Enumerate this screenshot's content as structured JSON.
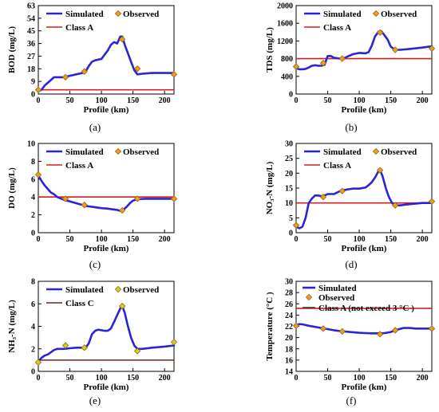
{
  "chart_data": [
    {
      "type": "line",
      "caption": "(a)",
      "xlabel": "Profile (km)",
      "ylabel": "BOD (mg/L)",
      "xlim": [
        0,
        215
      ],
      "xticks": [
        0,
        50,
        100,
        150,
        200
      ],
      "ylim": [
        0,
        63
      ],
      "yticks": [
        0,
        9,
        18,
        27,
        36,
        45,
        54,
        63
      ],
      "legend": {
        "simulated": "Simulated",
        "observed": "Observed",
        "standard": "Class A"
      },
      "standard": 3,
      "simulated": {
        "x": [
          0,
          5,
          10,
          15,
          20,
          25,
          30,
          40,
          50,
          60,
          70,
          75,
          80,
          85,
          90,
          95,
          100,
          105,
          110,
          115,
          120,
          125,
          130,
          133,
          137,
          142,
          147,
          152,
          157,
          165,
          180,
          200,
          215
        ],
        "y": [
          2,
          3,
          6,
          8,
          10,
          12,
          12,
          12,
          13,
          14,
          15,
          16,
          20,
          23,
          24,
          24.5,
          25,
          28,
          31,
          35,
          37,
          36,
          41,
          41,
          35,
          29,
          23,
          17,
          14,
          14.5,
          15,
          15,
          15
        ]
      },
      "observed": {
        "x": [
          0,
          43,
          73,
          133,
          157,
          215
        ],
        "y": [
          3,
          12,
          16,
          39,
          18,
          14
        ]
      }
    },
    {
      "type": "line",
      "caption": "(b)",
      "xlabel": "Profile (km)",
      "ylabel": "TDS (mg/L)",
      "xlim": [
        0,
        215
      ],
      "xticks": [
        0,
        50,
        100,
        150,
        200
      ],
      "ylim": [
        0,
        2000
      ],
      "yticks": [
        0,
        400,
        800,
        1200,
        1600,
        2000
      ],
      "legend": {
        "simulated": "Simulated",
        "observed": "Observed",
        "standard": "Class A"
      },
      "standard": 800,
      "simulated": {
        "x": [
          0,
          5,
          10,
          15,
          20,
          25,
          30,
          35,
          40,
          45,
          50,
          55,
          60,
          65,
          70,
          75,
          80,
          90,
          100,
          110,
          115,
          120,
          125,
          130,
          135,
          140,
          145,
          150,
          157,
          165,
          180,
          200,
          215
        ],
        "y": [
          580,
          560,
          560,
          570,
          600,
          640,
          650,
          640,
          640,
          660,
          860,
          860,
          820,
          810,
          800,
          800,
          840,
          900,
          930,
          920,
          950,
          1100,
          1300,
          1400,
          1420,
          1330,
          1230,
          1070,
          1000,
          1000,
          1020,
          1050,
          1080
        ]
      },
      "observed": {
        "x": [
          0,
          43,
          73,
          133,
          157,
          215
        ],
        "y": [
          620,
          700,
          800,
          1390,
          1000,
          1030
        ]
      }
    },
    {
      "type": "line",
      "caption": "(c)",
      "xlabel": "Profile (km)",
      "ylabel": "DO (mg/L)",
      "xlim": [
        0,
        215
      ],
      "xticks": [
        0,
        50,
        100,
        150,
        200
      ],
      "ylim": [
        0,
        10
      ],
      "yticks": [
        0,
        2,
        4,
        6,
        8,
        10
      ],
      "legend": {
        "simulated": "Simulated",
        "observed": "Observed",
        "standard": "Class A"
      },
      "standard": 4,
      "simulated": {
        "x": [
          0,
          5,
          10,
          15,
          20,
          25,
          30,
          40,
          50,
          60,
          70,
          75,
          80,
          90,
          100,
          110,
          120,
          125,
          130,
          133,
          140,
          145,
          150,
          157,
          170,
          190,
          215
        ],
        "y": [
          6.4,
          5.8,
          5.3,
          4.9,
          4.5,
          4.3,
          4.0,
          3.7,
          3.5,
          3.3,
          3.1,
          3.0,
          2.95,
          2.85,
          2.75,
          2.7,
          2.6,
          2.55,
          2.45,
          2.45,
          2.9,
          3.3,
          3.6,
          3.75,
          3.8,
          3.8,
          3.8
        ]
      },
      "observed": {
        "x": [
          0,
          43,
          73,
          133,
          157,
          215
        ],
        "y": [
          6.5,
          3.8,
          3.1,
          2.5,
          3.8,
          3.8
        ]
      }
    },
    {
      "type": "line",
      "caption": "(d)",
      "xlabel": "Profile (km)",
      "ylabel": "NO₃-N (mg/L)",
      "xlim": [
        0,
        215
      ],
      "xticks": [
        0,
        50,
        100,
        150,
        200
      ],
      "ylim": [
        0,
        30
      ],
      "yticks": [
        0,
        5,
        10,
        15,
        20,
        25,
        30
      ],
      "legend": {
        "simulated": "Simulated",
        "observed": "Observed",
        "standard": "Class A"
      },
      "standard": 10,
      "simulated": {
        "x": [
          0,
          5,
          10,
          15,
          20,
          25,
          30,
          35,
          40,
          45,
          50,
          60,
          70,
          80,
          90,
          100,
          105,
          110,
          115,
          120,
          125,
          130,
          133,
          137,
          142,
          147,
          152,
          157,
          165,
          180,
          200,
          215
        ],
        "y": [
          2,
          1.5,
          2,
          5,
          10,
          11.5,
          12.5,
          12.5,
          12.3,
          12.5,
          13,
          13,
          14,
          14.5,
          14.8,
          14.8,
          15,
          15.2,
          16,
          17,
          18.5,
          20.5,
          21,
          19,
          15,
          12,
          10,
          9.2,
          9.2,
          9.6,
          10,
          10
        ]
      },
      "observed": {
        "x": [
          0,
          43,
          73,
          133,
          157,
          215
        ],
        "y": [
          2.5,
          12,
          14,
          21,
          9.2,
          10.5
        ]
      }
    },
    {
      "type": "line",
      "caption": "(e)",
      "xlabel": "Profile (km)",
      "ylabel": "NH₃-N (mg/L)",
      "xlim": [
        0,
        215
      ],
      "xticks": [
        0,
        50,
        100,
        150,
        200
      ],
      "ylim": [
        0,
        8
      ],
      "yticks": [
        0,
        2,
        4,
        6,
        8
      ],
      "legend": {
        "simulated": "Simulated",
        "observed": "Observed",
        "standard": "Class C"
      },
      "standard": 1,
      "simulated": {
        "x": [
          0,
          5,
          10,
          15,
          20,
          25,
          30,
          40,
          50,
          60,
          70,
          75,
          80,
          85,
          90,
          95,
          100,
          105,
          110,
          115,
          120,
          125,
          130,
          133,
          137,
          142,
          147,
          152,
          157,
          165,
          180,
          200,
          215
        ],
        "y": [
          0.9,
          1.2,
          1.4,
          1.5,
          1.7,
          1.9,
          2.0,
          2.0,
          2.05,
          2.1,
          2.1,
          2.1,
          2.5,
          3.3,
          3.6,
          3.7,
          3.65,
          3.6,
          3.6,
          3.8,
          4.4,
          5.0,
          5.6,
          5.8,
          5.2,
          4.0,
          3.0,
          2.3,
          2.0,
          2.0,
          2.1,
          2.2,
          2.3
        ]
      },
      "observed": {
        "x": [
          0,
          43,
          73,
          133,
          157,
          215
        ],
        "y": [
          0.8,
          2.3,
          2.1,
          5.8,
          1.8,
          2.6
        ]
      }
    },
    {
      "type": "line",
      "caption": "(f)",
      "xlabel": "Profile (km)",
      "ylabel": "Temperature (°C )",
      "xlim": [
        0,
        215
      ],
      "xticks": [
        0,
        50,
        100,
        150,
        200
      ],
      "ylim": [
        14,
        30
      ],
      "yticks": [
        14,
        16,
        18,
        20,
        22,
        24,
        26,
        28,
        30
      ],
      "legend": {
        "simulated": "Simulated",
        "observed": "Observed",
        "standard": "Class A (not exceed 3 °C )"
      },
      "standard": 25.2,
      "simulated": {
        "x": [
          0,
          5,
          10,
          20,
          30,
          40,
          50,
          60,
          70,
          80,
          90,
          100,
          110,
          120,
          130,
          140,
          150,
          160,
          170,
          180,
          190,
          200,
          215
        ],
        "y": [
          22.2,
          22.4,
          22.35,
          22.1,
          21.9,
          21.7,
          21.5,
          21.3,
          21.15,
          21.05,
          20.95,
          20.85,
          20.8,
          20.75,
          20.75,
          20.8,
          21.0,
          21.4,
          21.7,
          21.7,
          21.6,
          21.6,
          21.6
        ]
      },
      "observed": {
        "x": [
          0,
          43,
          73,
          133,
          157,
          215
        ],
        "y": [
          22.1,
          21.6,
          21.1,
          20.6,
          21.3,
          21.6
        ]
      }
    }
  ],
  "colors": {
    "simulated": "#2b24d6",
    "standard": "#d42020",
    "standard_c": "#7a1f1f",
    "marker_orange": "#f59a1b",
    "marker_yellow": "#d8d01a",
    "marker_edge": "#8a6a1a"
  }
}
